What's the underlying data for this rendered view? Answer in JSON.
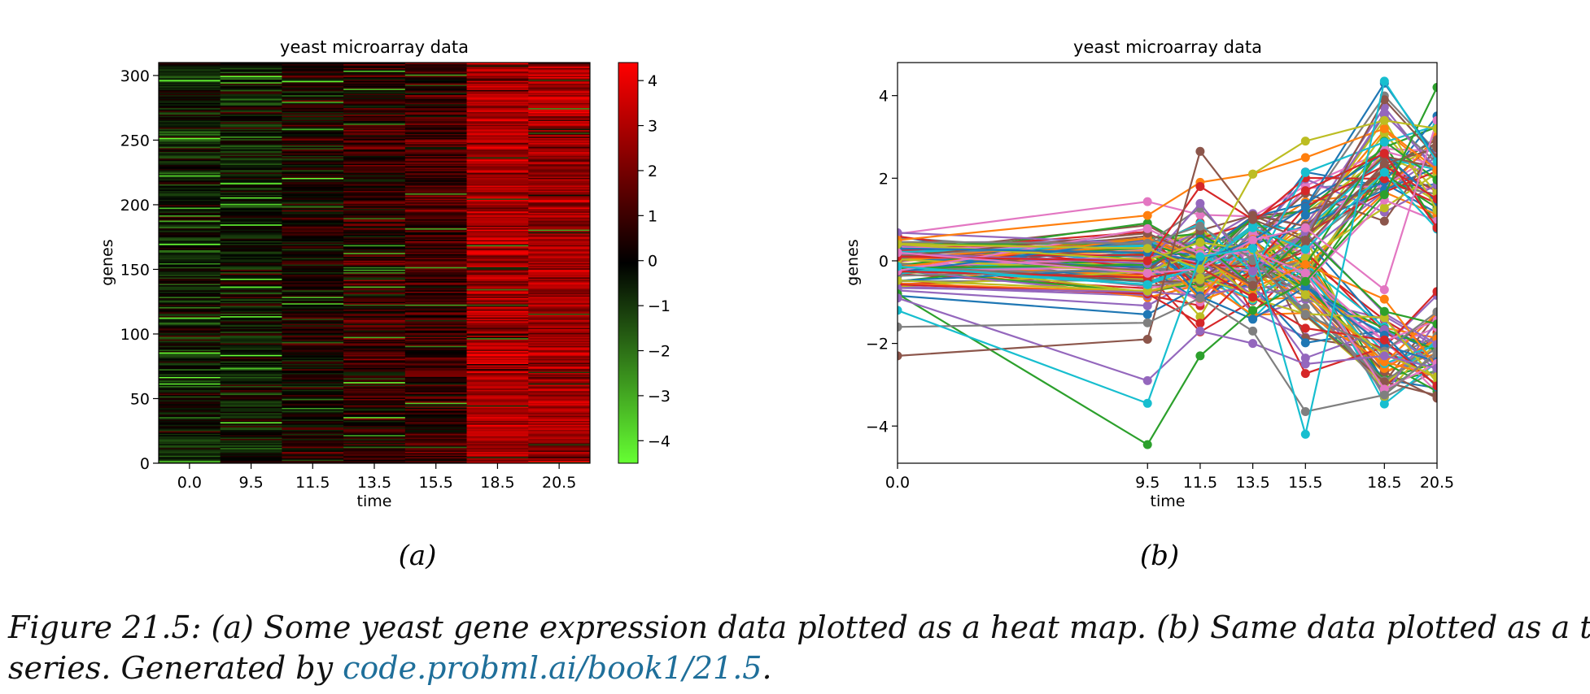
{
  "chart_data": [
    {
      "type": "heatmap",
      "title": "yeast microarray data",
      "xlabel": "time",
      "ylabel": "genes",
      "categories": [
        "0.0",
        "9.5",
        "11.5",
        "13.5",
        "15.5",
        "18.5",
        "20.5"
      ],
      "y_ticks": [
        0,
        50,
        100,
        150,
        200,
        250,
        300
      ],
      "ylim": [
        0,
        310
      ],
      "n_genes": 310,
      "column_mean_values": [
        -0.4,
        -0.3,
        0.3,
        0.8,
        1.0,
        3.0,
        2.8
      ],
      "colorbar": {
        "ticks": [
          -4,
          -3,
          -2,
          -1,
          0,
          1,
          2,
          3,
          4
        ],
        "range": [
          -4.5,
          4.4
        ],
        "low_color": "#66ff33",
        "mid_color": "#000000",
        "high_color": "#ff0000"
      }
    },
    {
      "type": "line",
      "title": "yeast microarray data",
      "xlabel": "time",
      "ylabel": "genes",
      "x": [
        0.0,
        9.5,
        11.5,
        13.5,
        15.5,
        18.5,
        20.5
      ],
      "x_tick_labels": [
        "0.0",
        "9.5",
        "11.5",
        "13.5",
        "15.5",
        "18.5",
        "20.5"
      ],
      "y_ticks": [
        -4,
        -2,
        0,
        2,
        4
      ],
      "ylim": [
        -4.9,
        4.8
      ],
      "xlim": [
        0.0,
        20.5
      ],
      "series_colors": [
        "#1f77b4",
        "#ff7f0e",
        "#2ca02c",
        "#d62728",
        "#9467bd",
        "#8c564b",
        "#e377c2",
        "#7f7f7f",
        "#bcbd22",
        "#17becf"
      ],
      "series": [
        {
          "values": [
            0.3,
            0.2,
            0.0,
            0.5,
            1.3,
            4.3,
            2.5
          ]
        },
        {
          "values": [
            0.5,
            1.1,
            1.9,
            2.1,
            2.5,
            3.2,
            2.2
          ]
        },
        {
          "values": [
            -0.8,
            -4.45,
            -2.3,
            -1.2,
            -0.5,
            1.6,
            4.2
          ]
        },
        {
          "values": [
            0.1,
            0.0,
            1.8,
            1.0,
            1.7,
            2.6,
            0.8
          ]
        },
        {
          "values": [
            -0.9,
            -2.9,
            -1.7,
            -2.0,
            -2.5,
            -2.3,
            -2.6
          ]
        },
        {
          "values": [
            -2.3,
            -1.9,
            2.65,
            1.0,
            0.5,
            3.9,
            2.5
          ]
        },
        {
          "values": [
            0.2,
            -0.3,
            -0.2,
            0.5,
            0.8,
            -0.7,
            3.4
          ]
        },
        {
          "values": [
            -1.6,
            -1.5,
            -0.9,
            -1.7,
            -3.65,
            -3.25,
            -2.2
          ]
        },
        {
          "values": [
            0.4,
            0.3,
            -0.2,
            2.1,
            2.9,
            3.4,
            3.2
          ]
        },
        {
          "values": [
            -1.2,
            -3.45,
            0.1,
            0.3,
            -4.2,
            4.35,
            2.4
          ]
        }
      ]
    }
  ],
  "subfig_labels": [
    "(a)",
    "(b)"
  ],
  "caption": {
    "line1": "Figure 21.5: (a) Some yeast gene expression data plotted as a heat map.  (b) Same data plotted as a time",
    "line2_prefix": "series.  Generated by ",
    "line2_link": "code.probml.ai/book1/21.5",
    "line2_suffix": "."
  }
}
